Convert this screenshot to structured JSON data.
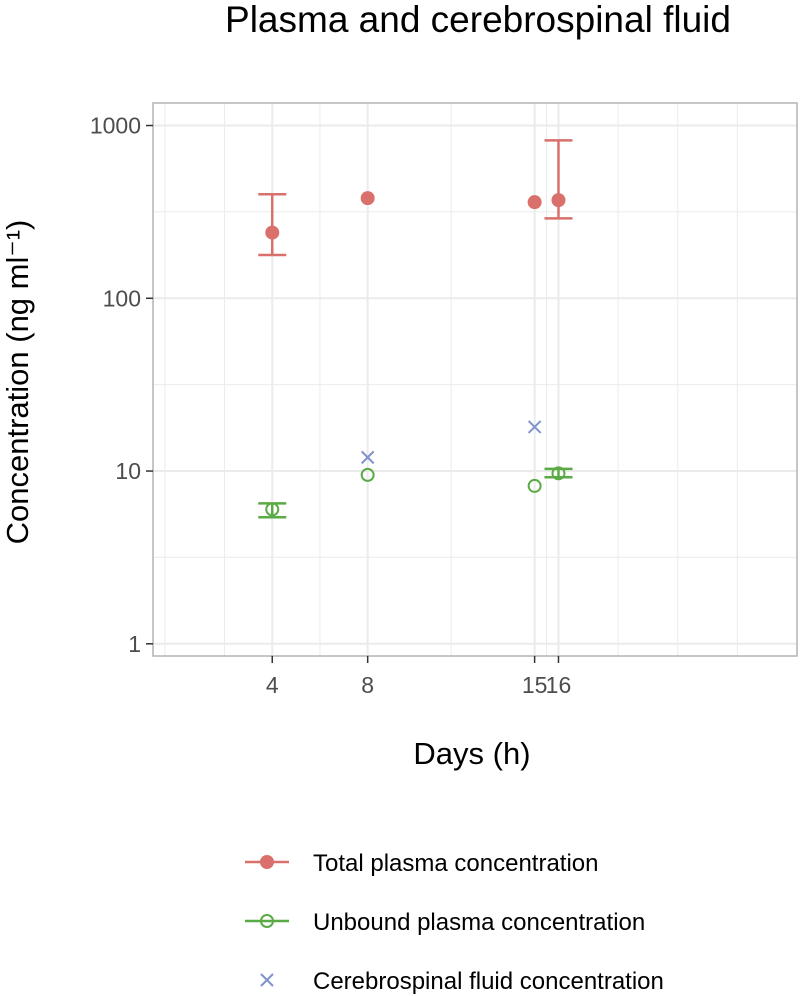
{
  "chart_data": {
    "type": "scatter",
    "title": "Plasma and cerebrospinal fluid",
    "xlabel": "Days (h)",
    "ylabel": "Concentration (ng ml⁻¹)",
    "xlim": [
      -1,
      26
    ],
    "ylim": [
      0.85,
      1350
    ],
    "yscale": "log",
    "x_ticks": [
      4,
      8,
      15,
      16
    ],
    "x_tick_labels": [
      "4",
      "8",
      "15",
      "16"
    ],
    "y_ticks": [
      1,
      10,
      100,
      1000
    ],
    "y_tick_labels": [
      "1",
      "10",
      "100",
      "1000"
    ],
    "grid": true,
    "legend_position": "bottom",
    "series": [
      {
        "name": "Total plasma concentration",
        "key": "total",
        "color": "#d9706b",
        "marker": "filled-circle",
        "points": [
          {
            "x": 4,
            "y": 240,
            "lower": 178,
            "upper": 400
          },
          {
            "x": 8,
            "y": 380
          },
          {
            "x": 15,
            "y": 360
          },
          {
            "x": 16,
            "y": 370,
            "lower": 290,
            "upper": 820
          }
        ]
      },
      {
        "name": "Unbound plasma concentration",
        "key": "unbound",
        "color": "#5aab46",
        "marker": "open-circle",
        "points": [
          {
            "x": 4,
            "y": 6,
            "lower": 5.4,
            "upper": 6.5
          },
          {
            "x": 8,
            "y": 9.5
          },
          {
            "x": 15,
            "y": 8.2
          },
          {
            "x": 16,
            "y": 9.7,
            "lower": 9.2,
            "upper": 10.3
          }
        ]
      },
      {
        "name": "Cerebrospinal fluid concentration",
        "key": "csf",
        "color": "#7f93cc",
        "marker": "cross",
        "points": [
          {
            "x": 8,
            "y": 12
          },
          {
            "x": 15,
            "y": 18
          }
        ]
      }
    ]
  }
}
